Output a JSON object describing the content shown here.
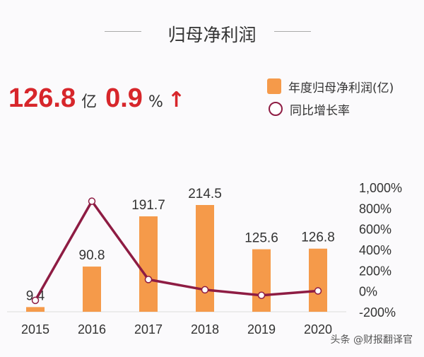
{
  "title": "归母净利润",
  "kpi": {
    "value": "126.8",
    "value_unit": "亿",
    "growth": "0.9",
    "growth_unit": "%",
    "trend_icon": "arrow-up-icon"
  },
  "watermark": "头条 @财报翻译官",
  "colors": {
    "bar": "#f59a4a",
    "line": "#8e1c43",
    "accent": "#d7262b"
  },
  "chart_data": {
    "type": "bar+line",
    "categories": [
      "2015",
      "2016",
      "2017",
      "2018",
      "2019",
      "2020"
    ],
    "series": [
      {
        "name": "年度归母净利润(亿)",
        "type": "bar",
        "axis": "left",
        "values": [
          9.4,
          90.8,
          191.7,
          214.5,
          125.6,
          126.8
        ],
        "labels": [
          "9.4",
          "90.8",
          "191.7",
          "214.5",
          "125.6",
          "126.8"
        ]
      },
      {
        "name": "同比增长率",
        "type": "line",
        "axis": "right",
        "values": [
          -90,
          866,
          111,
          11.9,
          -41.4,
          0.9
        ]
      }
    ],
    "ylim_left": [
      0,
      250
    ],
    "ylim_right": [
      -200,
      1000
    ],
    "right_ticks": [
      "1,000%",
      "800%",
      "600%",
      "400%",
      "200%",
      "0%",
      "-200%"
    ],
    "right_tick_values": [
      1000,
      800,
      600,
      400,
      200,
      0,
      -200
    ],
    "grid": false,
    "legend": "top-right"
  }
}
